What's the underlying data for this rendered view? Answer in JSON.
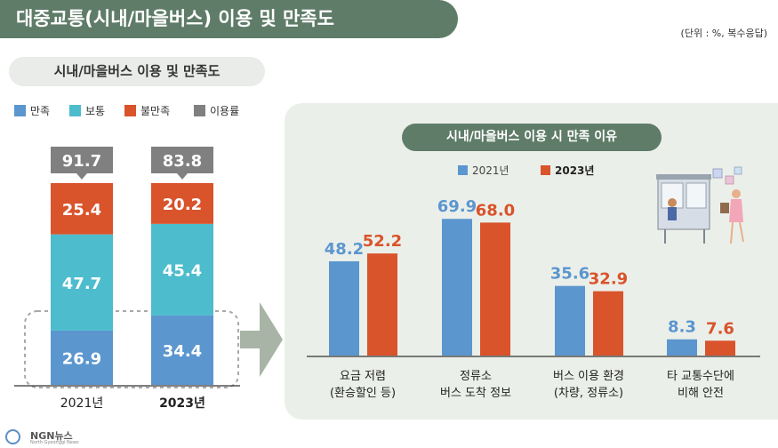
{
  "header": {
    "title": "대중교통(시내/마을버스) 이용 및 만족도",
    "unit": "(단위 : %, 복수응답)"
  },
  "left_chart_title": "시내/마을버스 이용 및 만족도",
  "left_legend": [
    "만족",
    "보통",
    "불만족",
    "이용률"
  ],
  "right_chart_title": "시내/마을버스 이용 시 만족 이유",
  "right_legend": [
    "2021년",
    "2023년"
  ],
  "colors": {
    "satisfied": "#5b96cf",
    "normal": "#4dbccd",
    "unsatisfied": "#d9532b",
    "usage": "#808080",
    "y2021": "#5b96cf",
    "y2023": "#d9532b",
    "header_green": "#5f7c68",
    "panel_bg": "#ebefe9"
  },
  "footer": {
    "brand": "NGN뉴스",
    "sub": "North Gyeonggi News"
  },
  "chart_data": [
    {
      "type": "bar",
      "stacked": true,
      "categories": [
        "2021년",
        "2023년"
      ],
      "series": [
        {
          "name": "만족",
          "values": [
            26.9,
            34.4
          ]
        },
        {
          "name": "보통",
          "values": [
            47.7,
            45.4
          ]
        },
        {
          "name": "불만족",
          "values": [
            25.4,
            20.2
          ]
        }
      ],
      "usage": {
        "name": "이용률",
        "values": [
          91.7,
          83.8
        ]
      },
      "title": "시내/마을버스 이용 및 만족도",
      "ylim": [
        0,
        100
      ],
      "legend": "top-left"
    },
    {
      "type": "bar",
      "categories": [
        [
          "요금 저렴",
          "(환승할인 등)"
        ],
        [
          "정류소",
          "버스 도착 정보"
        ],
        [
          "버스 이용 환경",
          "(차량, 정류소)"
        ],
        [
          "타 교통수단에",
          "비해 안전"
        ]
      ],
      "series": [
        {
          "name": "2021년",
          "values": [
            48.2,
            69.9,
            35.6,
            8.3
          ]
        },
        {
          "name": "2023년",
          "values": [
            52.2,
            68.0,
            32.9,
            7.6
          ]
        }
      ],
      "title": "시내/마을버스 이용 시 만족 이유",
      "ylim": [
        0,
        70
      ],
      "legend": "top"
    }
  ]
}
